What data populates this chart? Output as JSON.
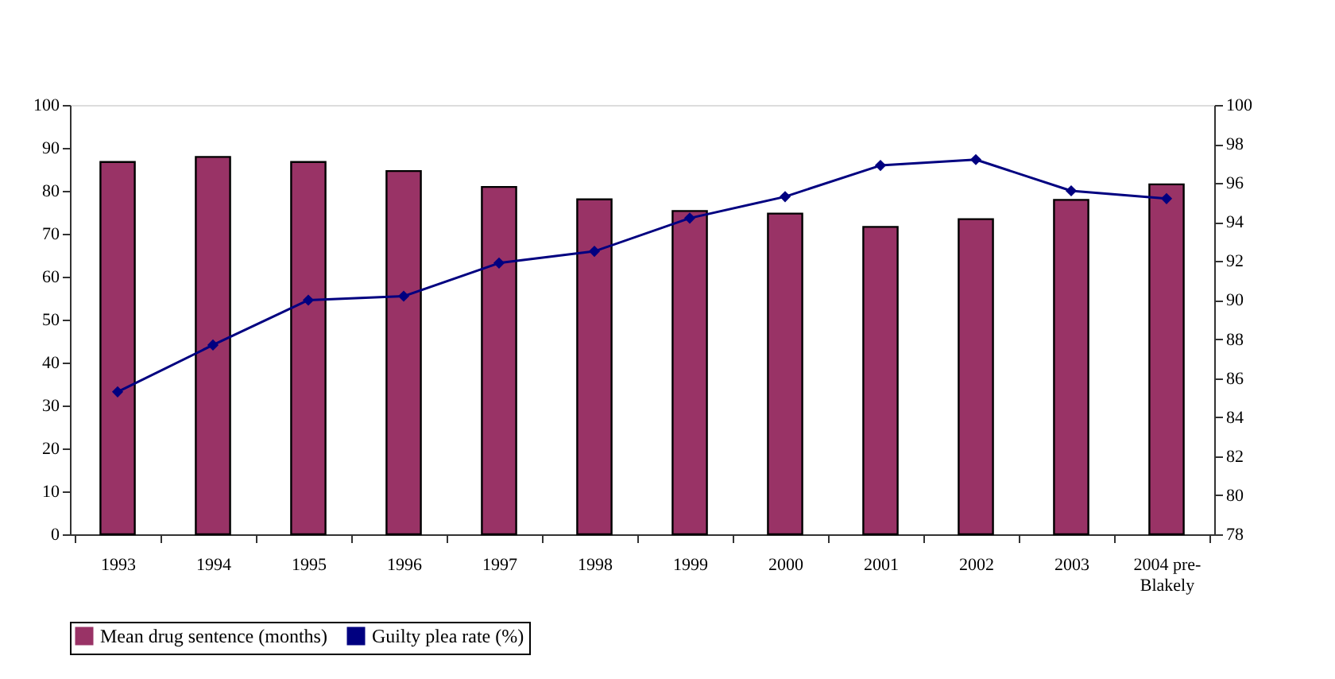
{
  "chart_data": {
    "type": "bar",
    "categories": [
      "1993",
      "1994",
      "1995",
      "1996",
      "1997",
      "1998",
      "1999",
      "2000",
      "2001",
      "2002",
      "2003",
      "2004 pre-\nBlakely"
    ],
    "series": [
      {
        "name": "Mean drug sentence (months)",
        "color": "#993366",
        "values": [
          86.7,
          87.9,
          86.7,
          84.6,
          80.9,
          78.0,
          75.3,
          74.7,
          71.6,
          73.4,
          77.9,
          81.5
        ]
      },
      {
        "name": "Guilty plea rate (%)",
        "type": "line",
        "axis": "y2",
        "color": "#000080",
        "values": [
          85.3,
          87.7,
          90.0,
          90.2,
          91.9,
          92.5,
          94.2,
          95.3,
          96.9,
          97.2,
          95.6,
          95.2
        ]
      }
    ],
    "ylim": [
      0,
      100
    ],
    "yticks": [
      0,
      10,
      20,
      30,
      40,
      50,
      60,
      70,
      80,
      90,
      100
    ],
    "y2lim": [
      78,
      100
    ],
    "y2ticks": [
      78,
      80,
      82,
      84,
      86,
      88,
      90,
      92,
      94,
      96,
      98,
      100
    ],
    "marker": "diamond",
    "line_style": "solid",
    "grid": false,
    "legend": "bottom"
  }
}
